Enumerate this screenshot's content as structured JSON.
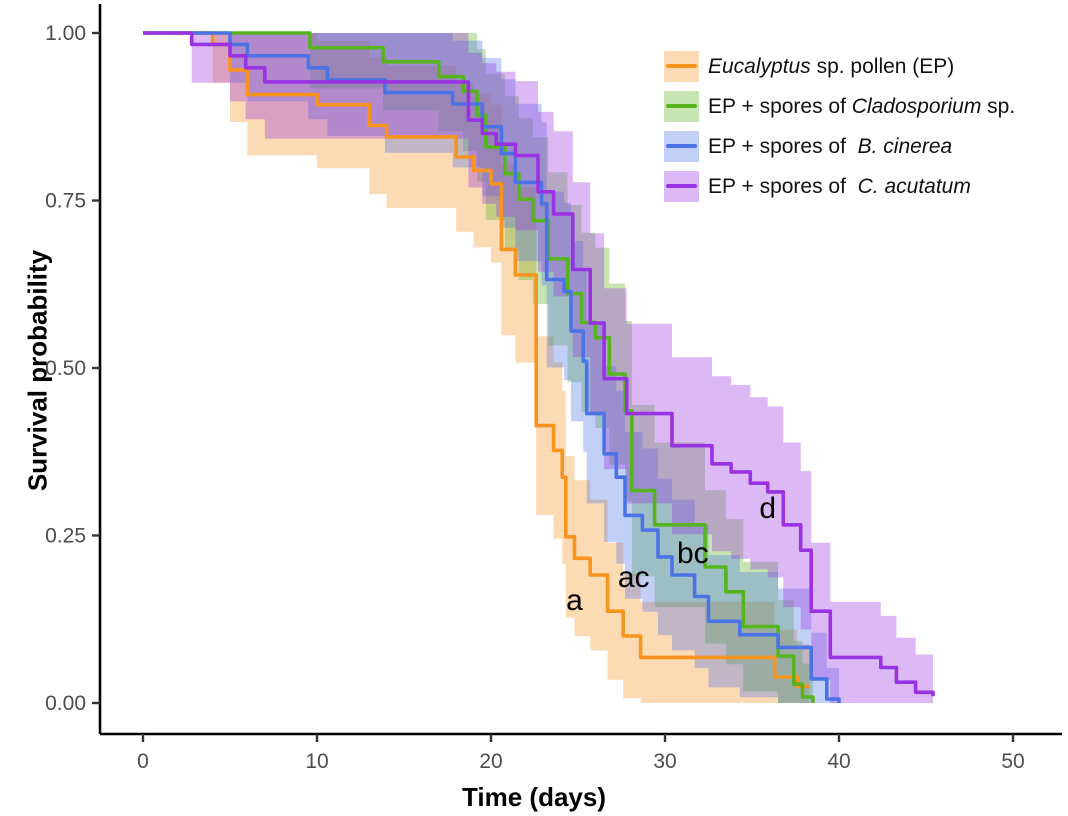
{
  "chart_data": {
    "type": "line",
    "subtype": "kaplan-meier-step-with-confidence-bands",
    "title": "",
    "xlabel": "Time (days)",
    "ylabel": "Survival probability",
    "xlim": [
      0,
      50
    ],
    "ylim": [
      0,
      1
    ],
    "grid": false,
    "legend_position": "top-right-inside",
    "x_ticks": [
      {
        "v": 0,
        "label": "0"
      },
      {
        "v": 10,
        "label": "10"
      },
      {
        "v": 20,
        "label": "20"
      },
      {
        "v": 30,
        "label": "30"
      },
      {
        "v": 40,
        "label": "40"
      },
      {
        "v": 50,
        "label": "50"
      }
    ],
    "y_ticks": [
      {
        "v": 0.0,
        "label": "0.00"
      },
      {
        "v": 0.25,
        "label": "0.25"
      },
      {
        "v": 0.5,
        "label": "0.50"
      },
      {
        "v": 0.75,
        "label": "0.75"
      },
      {
        "v": 1.0,
        "label": "1.00"
      }
    ],
    "series": [
      {
        "id": "ep",
        "name": "Eucalyptus sp. pollen (EP)",
        "label_parts": [
          {
            "text": "Eucalyptus",
            "italic": true
          },
          {
            "text": " sp. pollen (EP)",
            "italic": false
          }
        ],
        "color": "#F7941F",
        "band_opacity": 0.34,
        "steps": [
          [
            0,
            1.0
          ],
          [
            4,
            0.983
          ],
          [
            5,
            0.945
          ],
          [
            6,
            0.908
          ],
          [
            10,
            0.893
          ],
          [
            13,
            0.862
          ],
          [
            14,
            0.845
          ],
          [
            18,
            0.815
          ],
          [
            19,
            0.795
          ],
          [
            20,
            0.775
          ],
          [
            20.6,
            0.677
          ],
          [
            21.4,
            0.639
          ],
          [
            22.6,
            0.414
          ],
          [
            23.6,
            0.377
          ],
          [
            24.1,
            0.337
          ],
          [
            24.3,
            0.248
          ],
          [
            24.8,
            0.216
          ],
          [
            25.7,
            0.191
          ],
          [
            26.7,
            0.137
          ],
          [
            27.6,
            0.1
          ],
          [
            28.6,
            0.068
          ],
          [
            36.3,
            0.039
          ],
          [
            37.6,
            0.025
          ],
          [
            38.3,
            0.025
          ]
        ]
      },
      {
        "id": "ep-cladosporium",
        "name": "EP + spores of Cladosporium sp.",
        "label_parts": [
          {
            "text": "EP + spores of ",
            "italic": false
          },
          {
            "text": "Cladosporium",
            "italic": true
          },
          {
            "text": " sp.",
            "italic": false
          }
        ],
        "color": "#57B41F",
        "band_opacity": 0.34,
        "steps": [
          [
            0,
            1.0
          ],
          [
            9.6,
            0.978
          ],
          [
            13.8,
            0.957
          ],
          [
            17,
            0.935
          ],
          [
            18.4,
            0.913
          ],
          [
            19.2,
            0.877
          ],
          [
            19.7,
            0.83
          ],
          [
            20.8,
            0.79
          ],
          [
            21.6,
            0.752
          ],
          [
            22.4,
            0.72
          ],
          [
            23.3,
            0.663
          ],
          [
            24.4,
            0.611
          ],
          [
            25.2,
            0.568
          ],
          [
            26,
            0.545
          ],
          [
            26.8,
            0.491
          ],
          [
            27.7,
            0.436
          ],
          [
            28.1,
            0.317
          ],
          [
            29.4,
            0.266
          ],
          [
            32.3,
            0.203
          ],
          [
            33.5,
            0.166
          ],
          [
            34.5,
            0.114
          ],
          [
            36.5,
            0.07
          ],
          [
            37.4,
            0.028
          ],
          [
            37.9,
            0.009
          ],
          [
            38.5,
            0.0
          ]
        ]
      },
      {
        "id": "ep-bcinerea",
        "name": "EP + spores of B. cinerea",
        "label_parts": [
          {
            "text": "EP + spores of  ",
            "italic": false
          },
          {
            "text": "B. cinerea",
            "italic": true
          }
        ],
        "color": "#4C73E6",
        "band_opacity": 0.34,
        "steps": [
          [
            0,
            1.0
          ],
          [
            5,
            0.983
          ],
          [
            6,
            0.966
          ],
          [
            9.5,
            0.948
          ],
          [
            10.6,
            0.93
          ],
          [
            13.9,
            0.911
          ],
          [
            17.8,
            0.894
          ],
          [
            19.5,
            0.86
          ],
          [
            20.6,
            0.82
          ],
          [
            21.4,
            0.777
          ],
          [
            22.9,
            0.745
          ],
          [
            23.2,
            0.632
          ],
          [
            24.2,
            0.614
          ],
          [
            24.6,
            0.555
          ],
          [
            25.3,
            0.51
          ],
          [
            25.5,
            0.432
          ],
          [
            26.5,
            0.372
          ],
          [
            27.2,
            0.337
          ],
          [
            27.7,
            0.28
          ],
          [
            28.7,
            0.258
          ],
          [
            29.6,
            0.218
          ],
          [
            30.4,
            0.191
          ],
          [
            31.7,
            0.159
          ],
          [
            32.5,
            0.122
          ],
          [
            34.3,
            0.102
          ],
          [
            36.5,
            0.083
          ],
          [
            38.4,
            0.036
          ],
          [
            39.3,
            0.006
          ],
          [
            40,
            0.0
          ]
        ]
      },
      {
        "id": "ep-cacutatum",
        "name": "EP + spores of C. acutatum",
        "label_parts": [
          {
            "text": "EP + spores of  ",
            "italic": false
          },
          {
            "text": "C. acutatum",
            "italic": true
          }
        ],
        "color": "#9932E0",
        "band_opacity": 0.34,
        "steps": [
          [
            0,
            1.0
          ],
          [
            2.8,
            0.983
          ],
          [
            5,
            0.966
          ],
          [
            5.9,
            0.948
          ],
          [
            7,
            0.927
          ],
          [
            18.7,
            0.87
          ],
          [
            19.5,
            0.85
          ],
          [
            20.3,
            0.834
          ],
          [
            21.4,
            0.817
          ],
          [
            22.7,
            0.763
          ],
          [
            23.6,
            0.73
          ],
          [
            24.7,
            0.647
          ],
          [
            25.7,
            0.567
          ],
          [
            26.5,
            0.484
          ],
          [
            27.8,
            0.432
          ],
          [
            30.4,
            0.384
          ],
          [
            32.7,
            0.357
          ],
          [
            33.8,
            0.345
          ],
          [
            34.9,
            0.328
          ],
          [
            35.9,
            0.315
          ],
          [
            36.8,
            0.266
          ],
          [
            37.8,
            0.228
          ],
          [
            38.4,
            0.137
          ],
          [
            39.5,
            0.068
          ],
          [
            42.4,
            0.053
          ],
          [
            43.3,
            0.031
          ],
          [
            44.4,
            0.016
          ],
          [
            45.4,
            0.01
          ]
        ]
      }
    ],
    "annotations": [
      {
        "text": "a",
        "t": 24.8,
        "s": 0.154
      },
      {
        "text": "ac",
        "t": 28.2,
        "s": 0.188
      },
      {
        "text": "bc",
        "t": 31.6,
        "s": 0.224
      },
      {
        "text": "d",
        "t": 35.9,
        "s": 0.291
      }
    ]
  },
  "style_colors": {
    "axis_line": "#000000",
    "tick_mark": "#333333",
    "tick_label": "#4d4d4d",
    "annotation": "#000000"
  }
}
